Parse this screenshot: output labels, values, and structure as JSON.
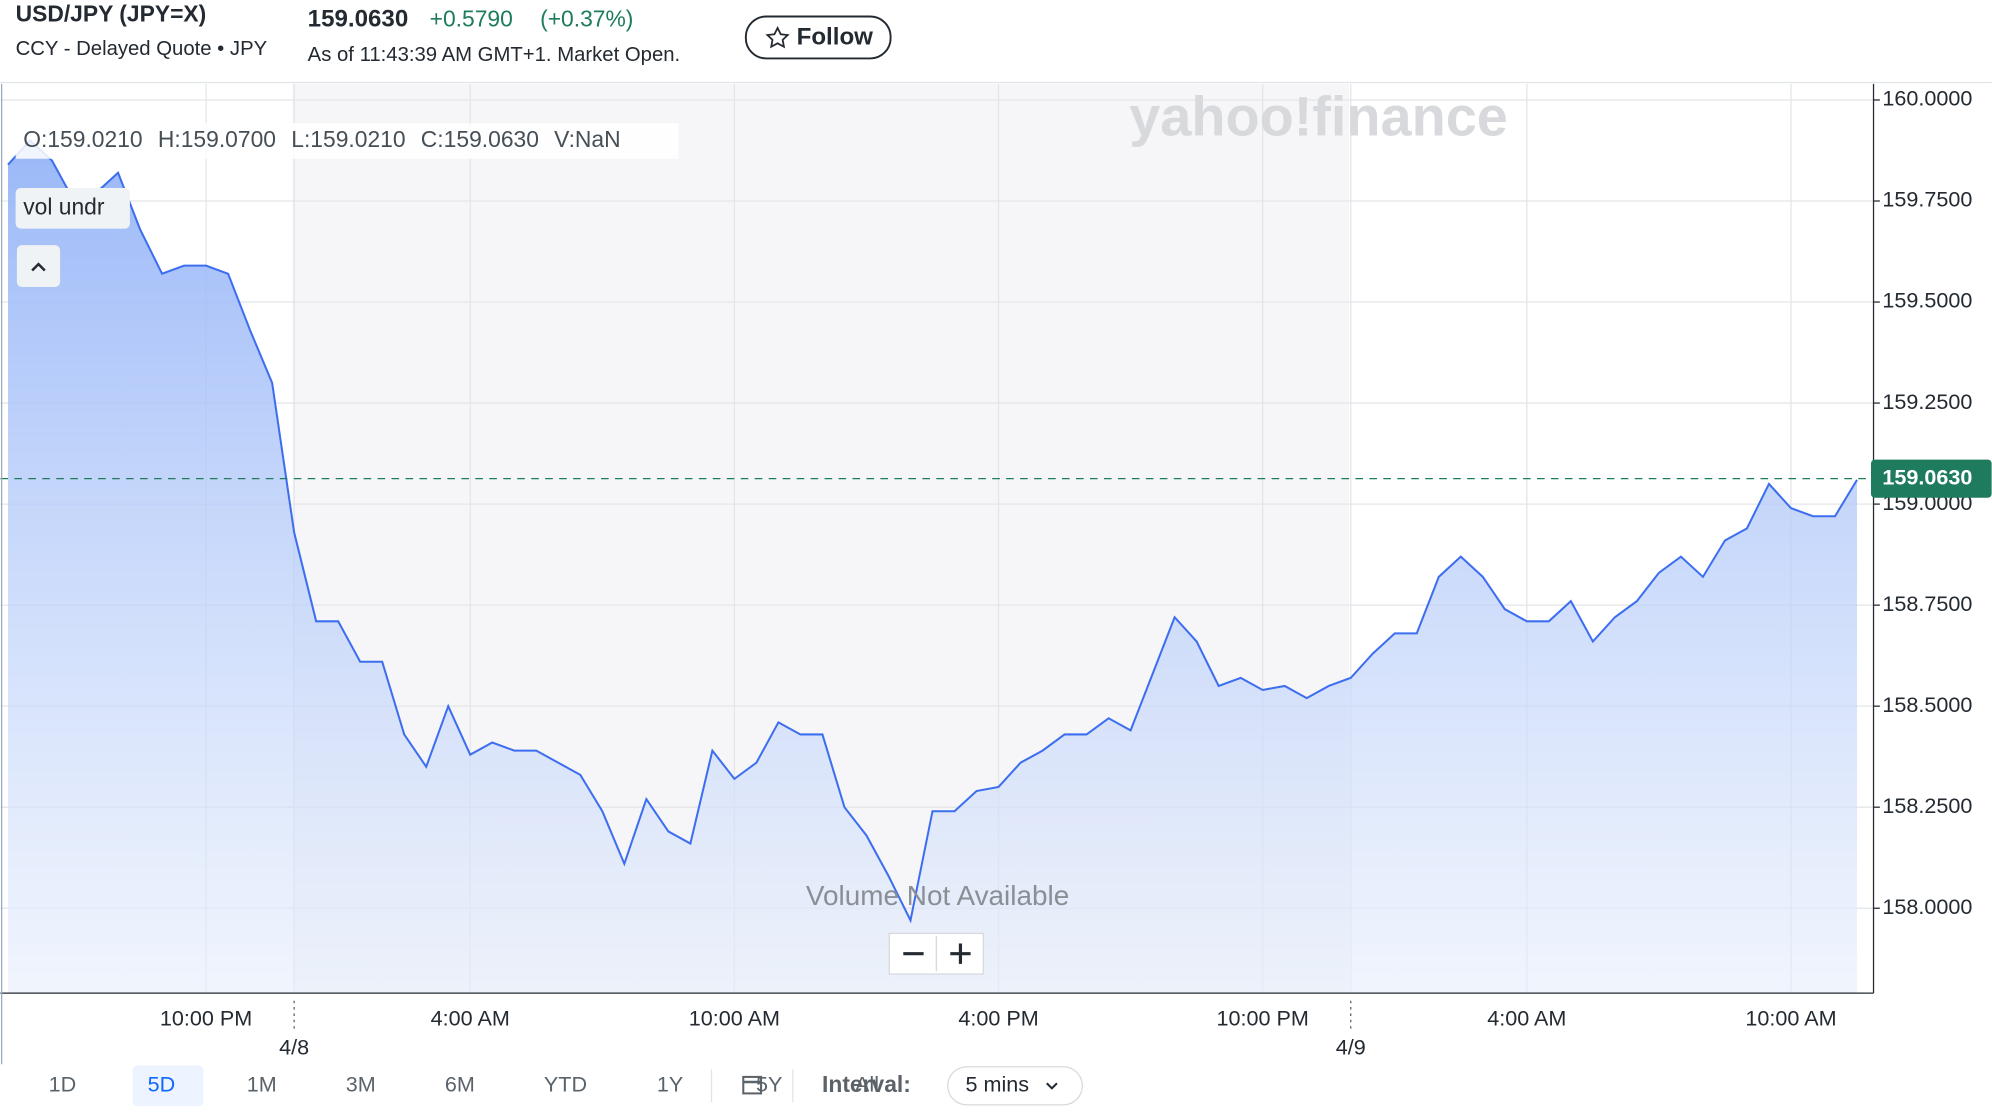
{
  "header": {
    "symbol": "USD/JPY (JPY=X)",
    "subtitle": "CCY - Delayed Quote • JPY",
    "price": "159.0630",
    "change": "+0.5790",
    "change_pct": "(+0.37%)",
    "as_of": "As of 11:43:39 AM GMT+1. Market Open.",
    "follow": "Follow"
  },
  "overlay": {
    "watermark": "yahoo!finance",
    "ohlc": [
      "O:159.0210",
      "H:159.0700",
      "L:159.0210",
      "C:159.0630",
      "V:NaN"
    ],
    "vol_button": "vol undr",
    "volume_note": "Volume Not Available"
  },
  "controls": {
    "ranges": [
      "1D",
      "5D",
      "1M",
      "3M",
      "6M",
      "YTD",
      "1Y",
      "5Y",
      "All"
    ],
    "selected_range": "5D",
    "interval_label": "Interval:",
    "interval": "5 mins"
  },
  "chart_data": {
    "type": "area",
    "color": "#3d6ef0",
    "grid": true,
    "categories": [
      null,
      null,
      null,
      null,
      null,
      null,
      null,
      null,
      null,
      "10:00 PM",
      null,
      null,
      null,
      "4/8",
      null,
      null,
      null,
      null,
      null,
      null,
      null,
      "4:00 AM",
      null,
      null,
      null,
      null,
      null,
      null,
      null,
      null,
      null,
      null,
      null,
      "10:00 AM",
      null,
      null,
      null,
      null,
      null,
      null,
      null,
      null,
      null,
      null,
      null,
      "4:00 PM",
      null,
      null,
      null,
      null,
      null,
      null,
      null,
      null,
      null,
      null,
      null,
      "10:00 PM",
      null,
      null,
      null,
      "4/9",
      null,
      null,
      null,
      null,
      null,
      null,
      null,
      "4:00 AM",
      null,
      null,
      null,
      null,
      null,
      null,
      null,
      null,
      null,
      null,
      null,
      "10:00 AM",
      null,
      null,
      null
    ],
    "values": [
      159.84,
      159.9,
      159.85,
      159.75,
      159.77,
      159.82,
      159.68,
      159.57,
      159.59,
      159.59,
      159.57,
      159.43,
      159.3,
      158.93,
      158.71,
      158.71,
      158.61,
      158.61,
      158.43,
      158.35,
      158.5,
      158.38,
      158.41,
      158.39,
      158.39,
      158.36,
      158.33,
      158.24,
      158.11,
      158.27,
      158.19,
      158.16,
      158.39,
      158.32,
      158.36,
      158.46,
      158.43,
      158.43,
      158.25,
      158.18,
      158.08,
      157.97,
      158.24,
      158.24,
      158.29,
      158.3,
      158.36,
      158.39,
      158.43,
      158.43,
      158.47,
      158.44,
      158.58,
      158.72,
      158.66,
      158.55,
      158.57,
      158.54,
      158.55,
      158.52,
      158.55,
      158.57,
      158.63,
      158.68,
      158.68,
      158.82,
      158.87,
      158.82,
      158.74,
      158.71,
      158.71,
      158.76,
      158.66,
      158.72,
      158.76,
      158.83,
      158.87,
      158.82,
      158.91,
      158.94,
      159.05,
      158.99,
      158.97,
      158.97,
      159.06
    ],
    "ylim": [
      157.79,
      160.04
    ],
    "yticks": [
      {
        "value": 158,
        "label": "158.0000"
      },
      {
        "value": 158.25,
        "label": "158.2500"
      },
      {
        "value": 158.5,
        "label": "158.5000"
      },
      {
        "value": 158.75,
        "label": "158.7500"
      },
      {
        "value": 159,
        "label": "159.0000"
      },
      {
        "value": 159.25,
        "label": "159.2500"
      },
      {
        "value": 159.5,
        "label": "159.5000"
      },
      {
        "value": 159.75,
        "label": "159.7500"
      },
      {
        "value": 160,
        "label": "160.0000"
      }
    ],
    "last_price": {
      "value": 159.063,
      "label": "159.0630"
    },
    "last_price_color": "#1e7b5e"
  }
}
